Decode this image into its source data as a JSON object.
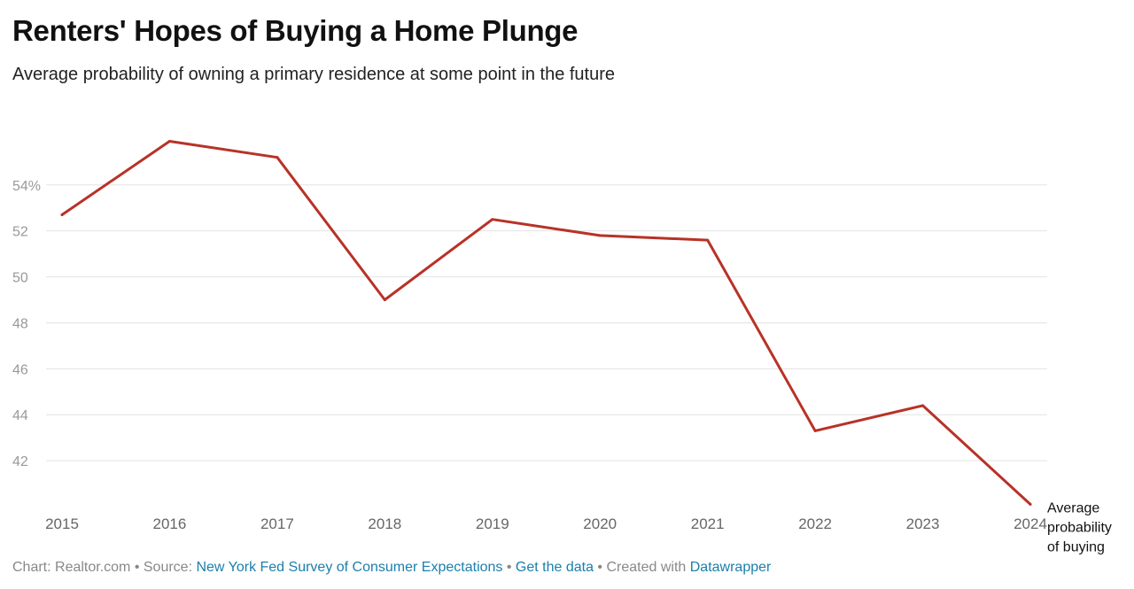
{
  "header": {
    "title": "Renters' Hopes of Buying a Home Plunge",
    "subtitle": "Average probability of owning a primary residence at some point in the future"
  },
  "chart_data": {
    "type": "line",
    "title": "Renters' Hopes of Buying a Home Plunge",
    "subtitle": "Average probability of owning a primary residence at some point in the future",
    "xlabel": "",
    "ylabel": "",
    "x": [
      "2015",
      "2016",
      "2017",
      "2018",
      "2019",
      "2020",
      "2021",
      "2022",
      "2023",
      "2024"
    ],
    "series": [
      {
        "name": "Average probability of buying",
        "label_lines": [
          "Average",
          "probability",
          "of buying"
        ],
        "values": [
          52.7,
          55.9,
          55.2,
          49.0,
          52.5,
          51.8,
          51.6,
          43.3,
          44.4,
          40.1
        ]
      }
    ],
    "ylim": [
      40,
      57.5
    ],
    "yticks": [
      42,
      44,
      46,
      48,
      50,
      52,
      54
    ],
    "ytick_labels": [
      "42",
      "44",
      "46",
      "48",
      "50",
      "52",
      "54%"
    ],
    "grid": true,
    "legend": "inline-end-label",
    "colors": {
      "line": "#b83227",
      "grid": "#e3e3e3"
    }
  },
  "footer": {
    "chart_prefix": "Chart: Realtor.com • Source: ",
    "source_link": "New York Fed Survey of Consumer Expectations",
    "sep1": " • ",
    "data_link": "Get the data",
    "sep2": " • Created with ",
    "tool_link": "Datawrapper",
    "link_color": "#1a7fab"
  }
}
